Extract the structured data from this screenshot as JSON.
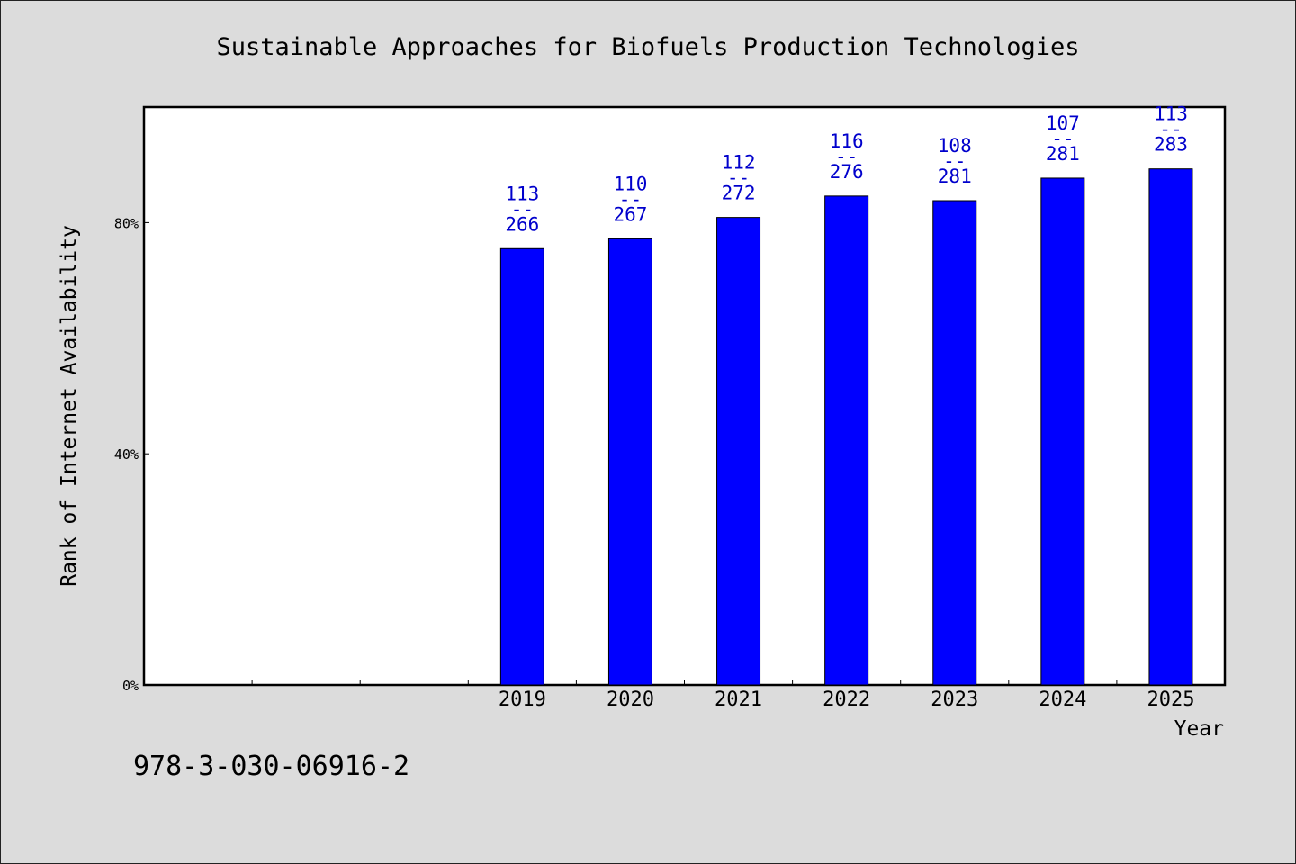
{
  "chart_data": {
    "type": "bar",
    "title": "Sustainable Approaches for Biofuels Production Technologies",
    "xlabel": "Year",
    "ylabel": "Rank of Internet Availability",
    "ylim": [
      0,
      100
    ],
    "yticks": [
      0,
      40,
      80
    ],
    "ytick_labels": [
      "0%",
      "40%",
      "80%"
    ],
    "x_slots": 10,
    "categories": [
      "2019",
      "2020",
      "2021",
      "2022",
      "2023",
      "2024",
      "2025"
    ],
    "values": [
      75.5,
      77.2,
      80.9,
      84.6,
      83.8,
      87.7,
      89.3
    ],
    "data_labels": [
      {
        "top": "113",
        "sep": "--",
        "bottom": "266"
      },
      {
        "top": "110",
        "sep": "--",
        "bottom": "267"
      },
      {
        "top": "112",
        "sep": "--",
        "bottom": "272"
      },
      {
        "top": "116",
        "sep": "--",
        "bottom": "276"
      },
      {
        "top": "108",
        "sep": "--",
        "bottom": "281"
      },
      {
        "top": "107",
        "sep": "--",
        "bottom": "281"
      },
      {
        "top": "113",
        "sep": "--",
        "bottom": "283"
      }
    ],
    "bar_color": "#0000ff",
    "label_color": "#0000cc",
    "grid": false,
    "legend": "none"
  },
  "footer": {
    "isbn": "978-3-030-06916-2"
  }
}
